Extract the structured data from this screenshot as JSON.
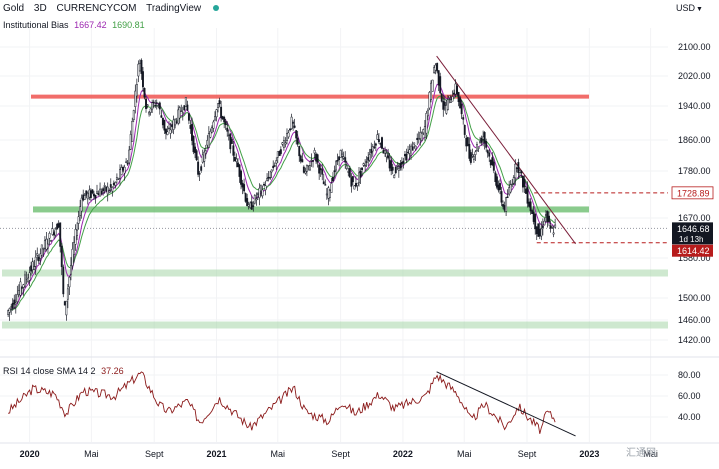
{
  "header": {
    "symbol": "Gold",
    "timeframe": "3D",
    "exchange": "CURRENCYCOM",
    "platform": "TradingView",
    "indicator_label": "Institutional Bias",
    "indicator_value_1": "1667.42",
    "indicator_value_2": "1690.81",
    "currency": "USD"
  },
  "rsi_header": {
    "label": "RSI 14 close SMA 14 2",
    "value": "37.26"
  },
  "watermark": "汇通网",
  "colors": {
    "candle": "#131722",
    "ema_fast": "#9c27b0",
    "ema_slow": "#43a047",
    "resistance": "#ef5350",
    "support": "#4caf50",
    "support_light": "#a5d6a7",
    "trendline": "#7b1f3a",
    "rsi_line": "#8b1a1a",
    "price_box_current": "#131722",
    "price_box_red": "#b71c1c"
  },
  "chart_data": [
    {
      "type": "candlestick",
      "x_range": [
        "2020-01-01",
        "2023-06-01"
      ],
      "y_range": [
        1400,
        2130
      ],
      "x_ticks": [
        {
          "label": "2020",
          "date": "2020-01-01"
        },
        {
          "label": "Mai",
          "date": "2020-05-01"
        },
        {
          "label": "Sept",
          "date": "2020-09-01"
        },
        {
          "label": "2021",
          "date": "2021-01-01"
        },
        {
          "label": "Mai",
          "date": "2021-05-01"
        },
        {
          "label": "Sept",
          "date": "2021-09-01"
        },
        {
          "label": "2022",
          "date": "2022-01-01"
        },
        {
          "label": "Mai",
          "date": "2022-05-01"
        },
        {
          "label": "Sept",
          "date": "2022-09-01"
        },
        {
          "label": "2023",
          "date": "2023-01-01"
        },
        {
          "label": "Mai",
          "date": "2023-05-01"
        }
      ],
      "y_ticks": [
        "2100.00",
        "2020.00",
        "1940.00",
        "1860.00",
        "1780.00",
        "1670.00",
        "1580.00",
        "1500.00",
        "1460.00",
        "1420.00"
      ],
      "key_points": [
        {
          "date": "2019-11-20",
          "price": 1470
        },
        {
          "date": "2020-01-08",
          "price": 1560
        },
        {
          "date": "2020-03-01",
          "price": 1660
        },
        {
          "date": "2020-03-12",
          "price": 1470
        },
        {
          "date": "2020-04-15",
          "price": 1720
        },
        {
          "date": "2020-06-15",
          "price": 1740
        },
        {
          "date": "2020-07-15",
          "price": 1810
        },
        {
          "date": "2020-08-06",
          "price": 2070
        },
        {
          "date": "2020-08-20",
          "price": 1930
        },
        {
          "date": "2020-09-10",
          "price": 1950
        },
        {
          "date": "2020-09-28",
          "price": 1870
        },
        {
          "date": "2020-11-05",
          "price": 1950
        },
        {
          "date": "2020-11-30",
          "price": 1770
        },
        {
          "date": "2021-01-06",
          "price": 1950
        },
        {
          "date": "2021-02-15",
          "price": 1790
        },
        {
          "date": "2021-03-08",
          "price": 1690
        },
        {
          "date": "2021-04-15",
          "price": 1760
        },
        {
          "date": "2021-06-01",
          "price": 1905
        },
        {
          "date": "2021-06-25",
          "price": 1770
        },
        {
          "date": "2021-07-15",
          "price": 1825
        },
        {
          "date": "2021-08-09",
          "price": 1720
        },
        {
          "date": "2021-09-03",
          "price": 1830
        },
        {
          "date": "2021-09-30",
          "price": 1740
        },
        {
          "date": "2021-11-16",
          "price": 1870
        },
        {
          "date": "2021-12-15",
          "price": 1775
        },
        {
          "date": "2022-01-25",
          "price": 1845
        },
        {
          "date": "2022-02-15",
          "price": 1880
        },
        {
          "date": "2022-03-08",
          "price": 2060
        },
        {
          "date": "2022-03-25",
          "price": 1930
        },
        {
          "date": "2022-04-18",
          "price": 1990
        },
        {
          "date": "2022-05-15",
          "price": 1810
        },
        {
          "date": "2022-06-10",
          "price": 1870
        },
        {
          "date": "2022-07-21",
          "price": 1690
        },
        {
          "date": "2022-08-15",
          "price": 1800
        },
        {
          "date": "2022-09-28",
          "price": 1625
        },
        {
          "date": "2022-10-10",
          "price": 1680
        },
        {
          "date": "2022-10-20",
          "price": 1640
        },
        {
          "date": "2022-10-28",
          "price": 1646.68
        }
      ],
      "horizontal_levels": [
        {
          "price": 1965,
          "kind": "resistance-zone"
        },
        {
          "price": 1690,
          "kind": "support-zone"
        },
        {
          "price": 1550,
          "kind": "support-zone-light"
        },
        {
          "price": 1450,
          "kind": "support-zone-light"
        },
        {
          "price": 1728.89,
          "kind": "dashed-level",
          "label": "1728.89"
        },
        {
          "price": 1614.42,
          "kind": "dashed-level",
          "label": "1614.42"
        }
      ],
      "trendline": {
        "from": {
          "date": "2022-03-08",
          "price": 2075
        },
        "to": {
          "date": "2022-12-05",
          "price": 1612
        }
      },
      "price_labels": [
        {
          "price": 1728.89,
          "text": "1728.89",
          "style": "outline-red"
        },
        {
          "price": 1646.68,
          "text": "1646.68",
          "sub": "1d 13h",
          "style": "current"
        },
        {
          "price": 1614.42,
          "text": "1614.42",
          "style": "filled-red"
        }
      ]
    },
    {
      "type": "line",
      "title": "RSI 14 close SMA 14 2",
      "y_ticks": [
        "80.00",
        "60.00",
        "40.00"
      ],
      "y_range": [
        18,
        90
      ],
      "points": [
        {
          "date": "2019-11-20",
          "value": 45
        },
        {
          "date": "2020-01-08",
          "value": 67
        },
        {
          "date": "2020-02-20",
          "value": 62
        },
        {
          "date": "2020-03-12",
          "value": 43
        },
        {
          "date": "2020-04-15",
          "value": 65
        },
        {
          "date": "2020-06-15",
          "value": 60
        },
        {
          "date": "2020-08-06",
          "value": 82
        },
        {
          "date": "2020-09-10",
          "value": 52
        },
        {
          "date": "2020-09-28",
          "value": 45
        },
        {
          "date": "2020-11-05",
          "value": 55
        },
        {
          "date": "2020-11-30",
          "value": 35
        },
        {
          "date": "2021-01-06",
          "value": 58
        },
        {
          "date": "2021-03-08",
          "value": 30
        },
        {
          "date": "2021-06-01",
          "value": 68
        },
        {
          "date": "2021-06-25",
          "value": 45
        },
        {
          "date": "2021-08-09",
          "value": 36
        },
        {
          "date": "2021-09-03",
          "value": 55
        },
        {
          "date": "2021-09-30",
          "value": 43
        },
        {
          "date": "2021-11-16",
          "value": 62
        },
        {
          "date": "2021-12-15",
          "value": 48
        },
        {
          "date": "2022-02-15",
          "value": 60
        },
        {
          "date": "2022-03-08",
          "value": 80
        },
        {
          "date": "2022-04-18",
          "value": 62
        },
        {
          "date": "2022-05-15",
          "value": 36
        },
        {
          "date": "2022-06-10",
          "value": 52
        },
        {
          "date": "2022-07-21",
          "value": 30
        },
        {
          "date": "2022-08-15",
          "value": 50
        },
        {
          "date": "2022-09-28",
          "value": 27
        },
        {
          "date": "2022-10-10",
          "value": 45
        },
        {
          "date": "2022-10-28",
          "value": 37.26
        }
      ],
      "trendline": {
        "from": {
          "date": "2022-03-08",
          "value": 83
        },
        "to": {
          "date": "2022-12-05",
          "value": 22
        }
      }
    }
  ]
}
